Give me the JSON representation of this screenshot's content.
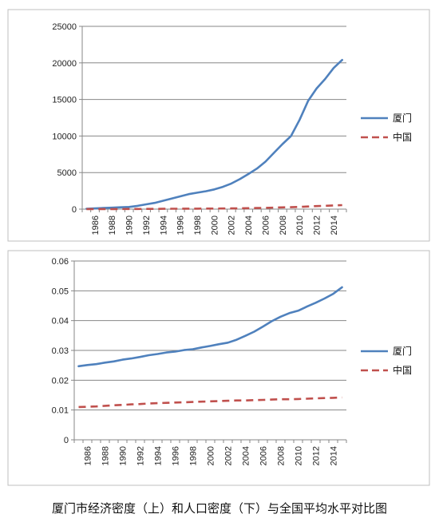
{
  "caption": "厦门市经济密度（上）和人口密度（下）与全国平均水平对比图",
  "colors": {
    "xiamen": "#4F81BD",
    "china": "#C0504D",
    "grid": "#878787",
    "axis": "#878787",
    "frame": "#bfbfbf"
  },
  "chart_data": [
    {
      "type": "line",
      "title": "",
      "xlabel": "",
      "ylabel": "",
      "ylim": [
        0,
        25000
      ],
      "yticks": [
        "0",
        "5000",
        "10000",
        "15000",
        "20000",
        "25000"
      ],
      "categories": [
        "1986",
        "1988",
        "1990",
        "1992",
        "1994",
        "1996",
        "1998",
        "2000",
        "2002",
        "2004",
        "2006",
        "2008",
        "2010",
        "2012",
        "2014"
      ],
      "grid": true,
      "legend": "right",
      "x": [
        1985,
        1986,
        1987,
        1988,
        1989,
        1990,
        1991,
        1992,
        1993,
        1994,
        1995,
        1996,
        1997,
        1998,
        1999,
        2000,
        2001,
        2002,
        2003,
        2004,
        2005,
        2006,
        2007,
        2008,
        2009,
        2010,
        2011,
        2012,
        2013,
        2014,
        2015
      ],
      "series": [
        {
          "name": "厦门",
          "style": "solid",
          "values": [
            50,
            100,
            150,
            200,
            250,
            300,
            450,
            650,
            850,
            1150,
            1450,
            1750,
            2050,
            2250,
            2450,
            2700,
            3050,
            3500,
            4100,
            4800,
            5550,
            6500,
            7700,
            8900,
            10000,
            12200,
            14800,
            16500,
            17800,
            19300,
            20400
          ]
        },
        {
          "name": "中国",
          "style": "dashed",
          "values": [
            8,
            10,
            12,
            14,
            16,
            18,
            22,
            28,
            35,
            42,
            50,
            58,
            64,
            68,
            72,
            80,
            90,
            100,
            112,
            130,
            150,
            178,
            208,
            240,
            265,
            305,
            360,
            415,
            460,
            505,
            550
          ]
        }
      ]
    },
    {
      "type": "line",
      "title": "",
      "xlabel": "",
      "ylabel": "",
      "ylim": [
        0,
        0.06
      ],
      "yticks": [
        "0",
        "0.01",
        "0.02",
        "0.03",
        "0.04",
        "0.05",
        "0.06"
      ],
      "categories": [
        "1986",
        "1988",
        "1990",
        "1992",
        "1994",
        "1996",
        "1998",
        "2000",
        "2002",
        "2004",
        "2006",
        "2008",
        "2010",
        "2012",
        "2014"
      ],
      "grid": true,
      "legend": "right",
      "x": [
        1985,
        1986,
        1987,
        1988,
        1989,
        1990,
        1991,
        1992,
        1993,
        1994,
        1995,
        1996,
        1997,
        1998,
        1999,
        2000,
        2001,
        2002,
        2003,
        2004,
        2005,
        2006,
        2007,
        2008,
        2009,
        2010,
        2011,
        2012,
        2013,
        2014,
        2015
      ],
      "series": [
        {
          "name": "厦门",
          "style": "solid",
          "values": [
            0.0247,
            0.0251,
            0.0254,
            0.0259,
            0.0263,
            0.0269,
            0.0273,
            0.0278,
            0.0284,
            0.0288,
            0.0293,
            0.0296,
            0.0301,
            0.0304,
            0.031,
            0.0315,
            0.0321,
            0.0326,
            0.0336,
            0.0349,
            0.0363,
            0.038,
            0.0398,
            0.0413,
            0.0425,
            0.0433,
            0.0447,
            0.046,
            0.0474,
            0.049,
            0.0512
          ]
        },
        {
          "name": "中国",
          "style": "dashed",
          "values": [
            0.011,
            0.0111,
            0.0112,
            0.0114,
            0.0116,
            0.0117,
            0.0119,
            0.012,
            0.0122,
            0.0123,
            0.0124,
            0.0125,
            0.0126,
            0.0127,
            0.0128,
            0.0129,
            0.013,
            0.0131,
            0.0132,
            0.0132,
            0.0133,
            0.0134,
            0.0135,
            0.0136,
            0.0136,
            0.0137,
            0.0138,
            0.0139,
            0.014,
            0.0141,
            0.0142
          ]
        }
      ]
    }
  ]
}
